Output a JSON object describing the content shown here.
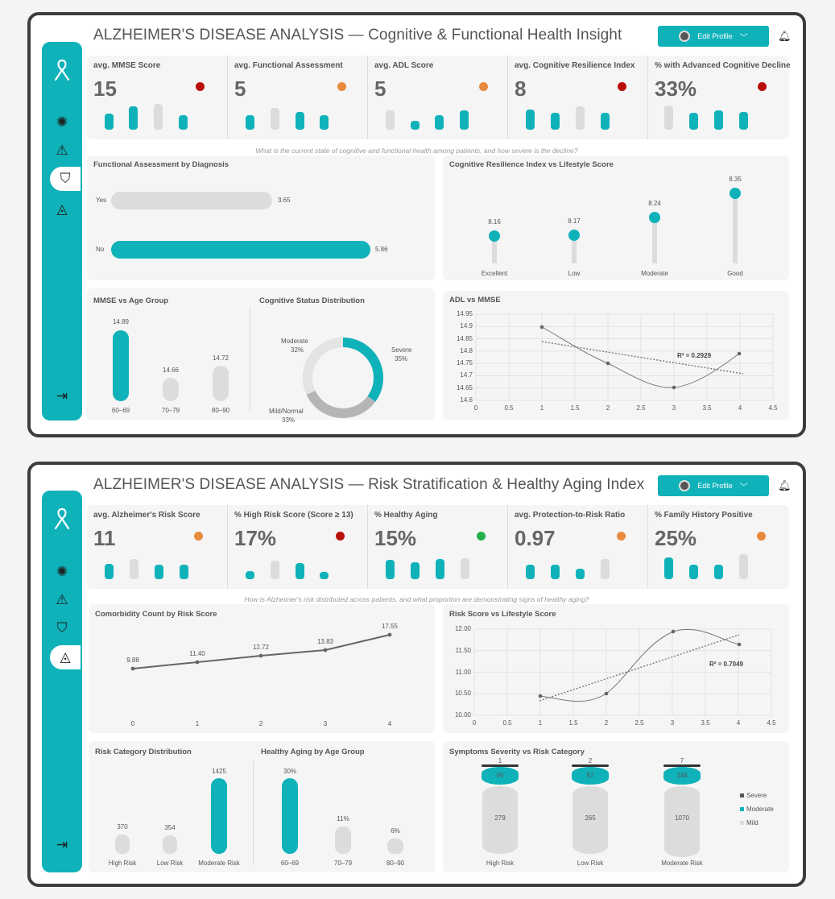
{
  "header": {
    "edit_profile": "Edit Profile"
  },
  "colors": {
    "teal": "#0fb2b9",
    "gray": "#dcdcdc",
    "red": "#b80f0a",
    "orange": "#e8893c",
    "green": "#22b04a"
  },
  "dash1": {
    "title": "ALZHEIMER'S DISEASE ANALYSIS — Cognitive & Functional Health Insight",
    "kpis": [
      {
        "label": "avg. MMSE Score",
        "value": "15",
        "status": "red"
      },
      {
        "label": "avg. Functional Assessment",
        "value": "5",
        "status": "orange"
      },
      {
        "label": "avg. ADL Score",
        "value": "5",
        "status": "orange"
      },
      {
        "label": "avg. Cognitive Resilience Index",
        "value": "8",
        "status": "red"
      },
      {
        "label": "% with Advanced Cognitive Decline",
        "value": "33%",
        "status": "red"
      }
    ],
    "question": "What is the current state of cognitive and functional health among patients, and how severe is the decline?",
    "functional_by_diagnosis": {
      "title": "Functional Assessment by Diagnosis",
      "rows": [
        {
          "label": "Yes",
          "value": "3.65"
        },
        {
          "label": "No",
          "value": "5.86"
        }
      ]
    },
    "cri_vs_lifestyle": {
      "title": "Cognitive Resilience Index vs Lifestyle Score",
      "items": [
        {
          "label": "Excellent",
          "value": "8.16"
        },
        {
          "label": "Low",
          "value": "8.17"
        },
        {
          "label": "Moderate",
          "value": "8.24"
        },
        {
          "label": "Good",
          "value": "8.35"
        }
      ]
    },
    "mmse_vs_age": {
      "title": "MMSE vs Age Group",
      "items": [
        {
          "label": "60–69",
          "value": "14.89"
        },
        {
          "label": "70–79",
          "value": "14.66"
        },
        {
          "label": "80–90",
          "value": "14.72"
        }
      ]
    },
    "cognitive_status": {
      "title": "Cognitive Status Distribution",
      "moderate_label": "Moderate",
      "moderate_pct": "32%",
      "severe_label": "Severe",
      "severe_pct": "35%",
      "mild_label": "Mild/Normal",
      "mild_pct": "33%"
    },
    "adl_vs_mmse": {
      "title": "ADL vs MMSE",
      "r2": "R² = 0.2929",
      "y_ticks": [
        "14.95",
        "14.9",
        "14.85",
        "14.8",
        "14.75",
        "14.7",
        "14.65",
        "14.6"
      ],
      "x_ticks": [
        "0",
        "0.5",
        "1",
        "1.5",
        "2",
        "2.5",
        "3",
        "3.5",
        "4",
        "4.5"
      ]
    }
  },
  "dash2": {
    "title": "ALZHEIMER'S DISEASE ANALYSIS — Risk Stratification & Healthy Aging Index",
    "kpis": [
      {
        "label": "avg. Alzheimer's Risk Score",
        "value": "11",
        "status": "orange"
      },
      {
        "label": "% High Risk Score (Score ≥ 13)",
        "value": "17%",
        "status": "red"
      },
      {
        "label": "% Healthy Aging",
        "value": "15%",
        "status": "green"
      },
      {
        "label": "avg. Protection-to-Risk Ratio",
        "value": "0.97",
        "status": "orange"
      },
      {
        "label": "% Family History Positive",
        "value": "25%",
        "status": "orange"
      }
    ],
    "question": "How is Alzheimer's risk distributed across patients, and what proportion are demonstrating signs of healthy aging?",
    "comorbidity": {
      "title": "Comorbidity Count by Risk Score",
      "x_ticks": [
        "0",
        "1",
        "2",
        "3",
        "4"
      ],
      "values": [
        "9.88",
        "11.40",
        "12.72",
        "13.83",
        "17.55"
      ]
    },
    "risk_vs_lifestyle": {
      "title": "Risk Score vs Lifestyle Score",
      "r2": "R² = 0.7049",
      "y_ticks": [
        "12.00",
        "11.50",
        "11.00",
        "10.50",
        "10.00"
      ],
      "x_ticks": [
        "0",
        "0.5",
        "1",
        "1.5",
        "2",
        "2.5",
        "3",
        "3.5",
        "4",
        "4.5"
      ]
    },
    "risk_category": {
      "title": "Risk Category Distribution",
      "items": [
        {
          "label": "High Risk",
          "value": "370"
        },
        {
          "label": "Low Risk",
          "value": "354"
        },
        {
          "label": "Moderate Risk",
          "value": "1425"
        }
      ]
    },
    "healthy_by_age": {
      "title": "Healthy Aging by Age Group",
      "items": [
        {
          "label": "60–69",
          "value": "30%"
        },
        {
          "label": "70–79",
          "value": "11%"
        },
        {
          "label": "80–90",
          "value": "6%"
        }
      ]
    },
    "symptoms": {
      "title": "Symptoms Severity vs Risk Category",
      "items": [
        {
          "label": "High Risk",
          "severe": "1",
          "moderate": "90",
          "mild": "279"
        },
        {
          "label": "Low Risk",
          "severe": "2",
          "moderate": "87",
          "mild": "265"
        },
        {
          "label": "Moderate Risk",
          "severe": "7",
          "moderate": "348",
          "mild": "1070"
        }
      ],
      "legend": [
        "Severe",
        "Moderate",
        "Mild"
      ]
    }
  }
}
